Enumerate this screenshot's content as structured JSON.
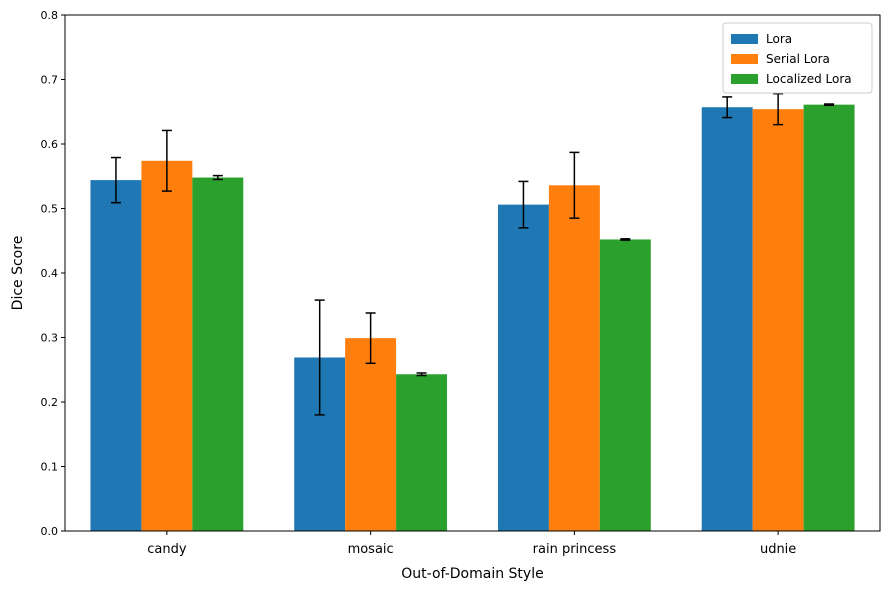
{
  "chart_data": {
    "type": "bar",
    "title": "",
    "xlabel": "Out-of-Domain Style",
    "ylabel": "Dice Score",
    "categories": [
      "candy",
      "mosaic",
      "rain princess",
      "udnie"
    ],
    "ylim": [
      0,
      0.8
    ],
    "yticks": [
      0.0,
      0.1,
      0.2,
      0.3,
      0.4,
      0.5,
      0.6,
      0.7,
      0.8
    ],
    "ytick_labels": [
      "0.0",
      "0.1",
      "0.2",
      "0.3",
      "0.4",
      "0.5",
      "0.6",
      "0.7",
      "0.8"
    ],
    "grid": false,
    "legend_position": "top-right",
    "series": [
      {
        "name": "Lora",
        "color": "#1f77b4",
        "values": [
          0.544,
          0.269,
          0.506,
          0.657
        ],
        "errors": [
          0.035,
          0.089,
          0.036,
          0.016
        ]
      },
      {
        "name": "Serial Lora",
        "color": "#ff7f0e",
        "values": [
          0.574,
          0.299,
          0.536,
          0.654
        ],
        "errors": [
          0.047,
          0.039,
          0.051,
          0.024
        ]
      },
      {
        "name": "Localized Lora",
        "color": "#2ca02c",
        "values": [
          0.548,
          0.243,
          0.452,
          0.661
        ],
        "errors": [
          0.003,
          0.002,
          0.001,
          0.001
        ]
      }
    ]
  }
}
